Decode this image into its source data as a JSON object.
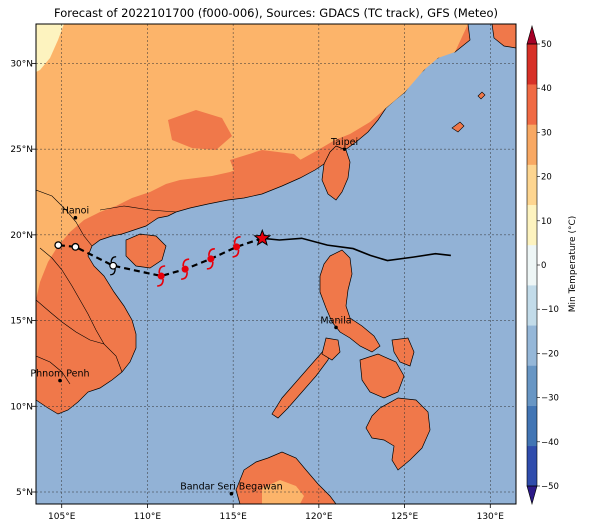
{
  "title": "Forecast of 2022101700 (f000-006), Sources: GDACS (TC track), GFS (Meteo)",
  "map": {
    "lon_range": [
      103.5,
      131.5
    ],
    "lat_range": [
      4.3,
      32.3
    ],
    "lon_ticks": [
      {
        "value": 105,
        "label": "105°E"
      },
      {
        "value": 110,
        "label": "110°E"
      },
      {
        "value": 115,
        "label": "115°E"
      },
      {
        "value": 120,
        "label": "120°E"
      },
      {
        "value": 125,
        "label": "125°E"
      },
      {
        "value": 130,
        "label": "130°E"
      }
    ],
    "lat_ticks": [
      {
        "value": 5,
        "label": "5°N"
      },
      {
        "value": 10,
        "label": "10°N"
      },
      {
        "value": 15,
        "label": "15°N"
      },
      {
        "value": 20,
        "label": "20°N"
      },
      {
        "value": 25,
        "label": "25°N"
      },
      {
        "value": 30,
        "label": "30°N"
      }
    ],
    "grid": true,
    "ocean_color": "#92b2d6"
  },
  "cities": [
    {
      "name": "Hanoi",
      "lon": 105.8,
      "lat": 21.0
    },
    {
      "name": "Taipei",
      "lon": 121.5,
      "lat": 25.0
    },
    {
      "name": "Manila",
      "lon": 121.0,
      "lat": 14.6
    },
    {
      "name": "Phnom Penh",
      "lon": 104.9,
      "lat": 11.5
    },
    {
      "name": "Bandar Seri Begawan",
      "lon": 114.9,
      "lat": 4.9
    }
  ],
  "track": {
    "history": [
      [
        127.7,
        18.8
      ],
      [
        126.8,
        18.9
      ],
      [
        125.5,
        18.7
      ],
      [
        124.0,
        18.5
      ],
      [
        123.0,
        18.8
      ],
      [
        122.0,
        19.2
      ],
      [
        120.5,
        19.4
      ],
      [
        119.0,
        19.8
      ],
      [
        117.7,
        19.7
      ],
      [
        116.7,
        19.8
      ]
    ],
    "current": {
      "lon": 116.7,
      "lat": 19.8
    },
    "forecast": [
      {
        "lon": 115.2,
        "lat": 19.3,
        "symbol": "typhoon"
      },
      {
        "lon": 113.7,
        "lat": 18.6,
        "symbol": "typhoon"
      },
      {
        "lon": 112.2,
        "lat": 18.0,
        "symbol": "typhoon"
      },
      {
        "lon": 110.8,
        "lat": 17.6,
        "symbol": "typhoon"
      },
      {
        "lon": 108.0,
        "lat": 18.2,
        "symbol": "storm"
      },
      {
        "lon": 105.8,
        "lat": 19.3,
        "symbol": "depression"
      },
      {
        "lon": 104.8,
        "lat": 19.4,
        "symbol": "depression"
      }
    ],
    "colors": {
      "history": "#000000",
      "forecast": "#000000",
      "typhoon": "#e8000b",
      "star": "#e8000b"
    }
  },
  "colorbar": {
    "label": "Min Temperature (°C)",
    "min": -50,
    "max": 50,
    "step": 10,
    "colors": [
      "#2c1a88",
      "#2f4cac",
      "#4275b4",
      "#6896c4",
      "#95b7d8",
      "#c2dbe9",
      "#eef6f6",
      "#fdf3bf",
      "#fdd590",
      "#f8a863",
      "#f06a44",
      "#d73027",
      "#a50026"
    ],
    "ticks": [
      "−50",
      "−40",
      "−30",
      "−20",
      "−10",
      "0",
      "10",
      "20",
      "30",
      "40",
      "50"
    ]
  }
}
